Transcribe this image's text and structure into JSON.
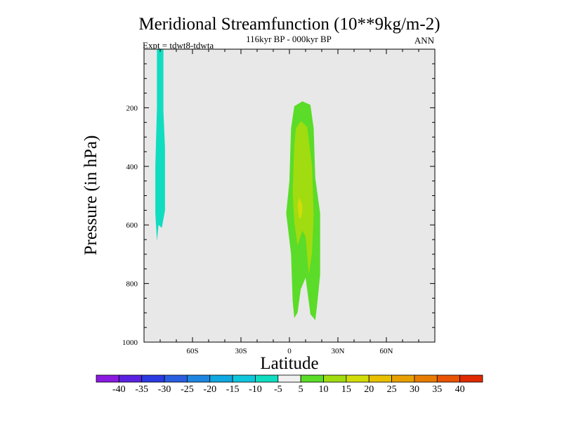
{
  "chart_data": {
    "type": "heatmap",
    "title": "Meridional Streamfunction (10**9kg/m-2)",
    "subtitle": "116kyr BP - 000kyr BP",
    "left_annotation": "Expt = tdwt8-tdwta",
    "right_annotation": "ANN",
    "xlabel": "Latitude",
    "ylabel": "Pressure (in hPa)",
    "xlim": [
      -90,
      90
    ],
    "ylim": [
      1000,
      0
    ],
    "x_ticks": [
      {
        "value": -60,
        "label": "60S"
      },
      {
        "value": -30,
        "label": "30S"
      },
      {
        "value": 0,
        "label": "0"
      },
      {
        "value": 30,
        "label": "30N"
      },
      {
        "value": 60,
        "label": "60N"
      }
    ],
    "y_ticks": [
      {
        "value": 200,
        "label": "200"
      },
      {
        "value": 400,
        "label": "400"
      },
      {
        "value": 600,
        "label": "600"
      },
      {
        "value": 800,
        "label": "800"
      },
      {
        "value": 1000,
        "label": "1000"
      }
    ],
    "background_color": "#e8e8e8",
    "colorbar": {
      "levels": [
        "-40",
        "-35",
        "-30",
        "-25",
        "-20",
        "-15",
        "-10",
        "-5",
        "5",
        "10",
        "15",
        "20",
        "25",
        "30",
        "35",
        "40"
      ],
      "colors": [
        "#8a1ae0",
        "#5a22e0",
        "#2a3ae0",
        "#2a5ee0",
        "#1e86e0",
        "#10a8e0",
        "#10c6dc",
        "#10dcc0",
        "#f0f0f0",
        "#5adc28",
        "#a0dc10",
        "#d2dc0a",
        "#e8c000",
        "#e8a000",
        "#e87c00",
        "#e85400",
        "#e02a00"
      ]
    },
    "regions": [
      {
        "name": "band-10-to-5",
        "color": "#10dcc0",
        "level": "-10 to -5",
        "points": [
          [
            -82,
            0
          ],
          [
            -78,
            0
          ],
          [
            -78,
            210
          ],
          [
            -77,
            340
          ],
          [
            -77,
            550
          ],
          [
            -79,
            610
          ],
          [
            -81,
            600
          ],
          [
            -82,
            655
          ],
          [
            -83,
            560
          ],
          [
            -83,
            400
          ],
          [
            -82,
            200
          ]
        ]
      },
      {
        "name": "band-5-to-10-core",
        "color": "#5adc28",
        "level": "5 to 10",
        "points": [
          [
            0,
            450
          ],
          [
            1,
            270
          ],
          [
            3,
            195
          ],
          [
            8,
            178
          ],
          [
            13,
            190
          ],
          [
            15,
            270
          ],
          [
            16,
            440
          ],
          [
            19,
            560
          ],
          [
            19,
            770
          ],
          [
            17,
            880
          ],
          [
            16,
            925
          ],
          [
            13,
            905
          ],
          [
            10,
            780
          ],
          [
            7,
            820
          ],
          [
            5,
            900
          ],
          [
            3,
            918
          ],
          [
            2,
            860
          ],
          [
            1,
            700
          ],
          [
            -2,
            560
          ]
        ]
      },
      {
        "name": "band-10-to-15-core",
        "color": "#a0dc10",
        "level": "10 to 15",
        "points": [
          [
            3,
            330
          ],
          [
            4,
            270
          ],
          [
            7,
            245
          ],
          [
            11,
            265
          ],
          [
            14,
            400
          ],
          [
            15,
            565
          ],
          [
            14,
            695
          ],
          [
            12,
            770
          ],
          [
            10,
            640
          ],
          [
            8,
            620
          ],
          [
            5,
            670
          ],
          [
            3,
            590
          ],
          [
            2,
            490
          ]
        ]
      },
      {
        "name": "band-15-to-20-core",
        "color": "#d2dc0a",
        "level": "15 to 20",
        "points": [
          [
            6,
            505
          ],
          [
            8,
            530
          ],
          [
            8,
            555
          ],
          [
            7,
            580
          ],
          [
            6,
            575
          ],
          [
            5,
            535
          ]
        ]
      }
    ]
  }
}
